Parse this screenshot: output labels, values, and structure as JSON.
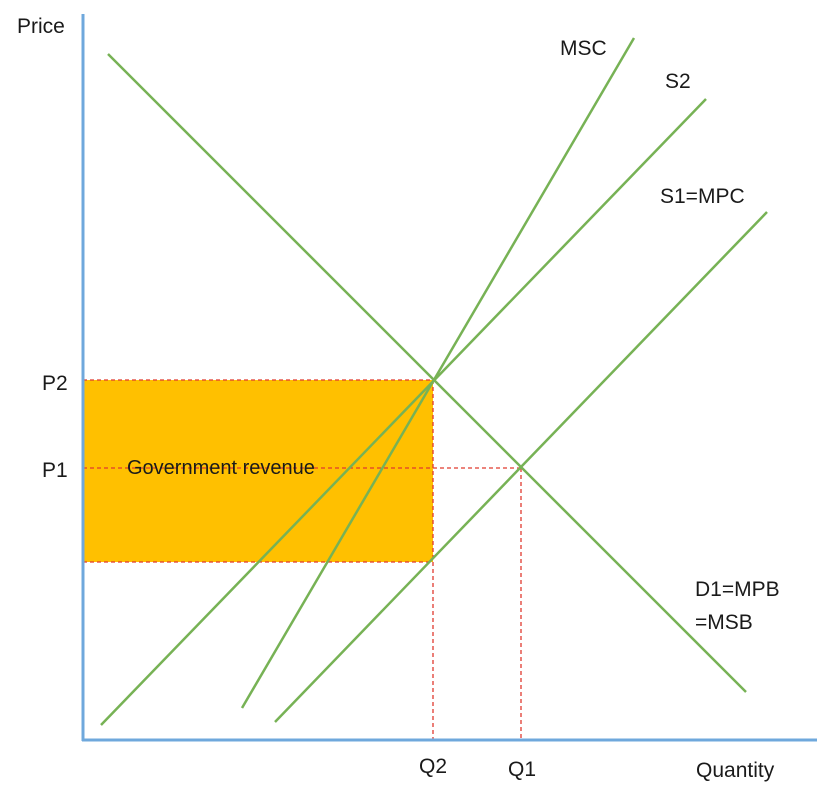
{
  "axes": {
    "y_label": "Price",
    "x_label": "Quantity"
  },
  "curves": {
    "msc": "MSC",
    "s2": "S2",
    "s1": "S1=MPC",
    "demand_line1": "D1=MPB",
    "demand_line2": "=MSB"
  },
  "price_levels": {
    "p2": "P2",
    "p1": "P1"
  },
  "quantity_levels": {
    "q2": "Q2",
    "q1": "Q1"
  },
  "tax_area": {
    "label": "Government revenue",
    "color": "#ffc000"
  },
  "colors": {
    "curves": "#77b255",
    "axes": "#6fa8dc",
    "guides": "#e03a2f"
  }
}
